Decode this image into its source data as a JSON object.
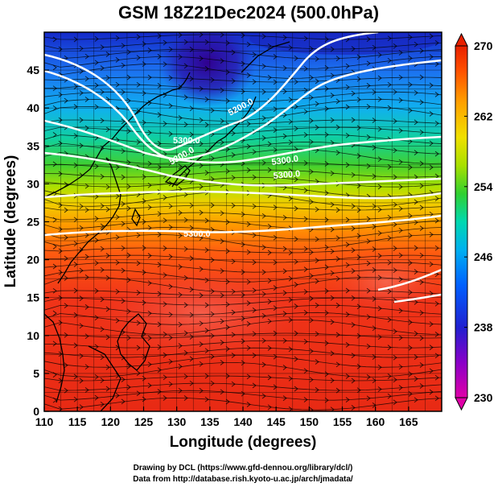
{
  "title": "GSM 18Z21Dec2024 (500.0hPa)",
  "x_axis": {
    "label": "Longitude (degrees)",
    "range": [
      110,
      170
    ],
    "ticks": [
      110,
      115,
      120,
      125,
      130,
      135,
      140,
      145,
      150,
      155,
      160,
      165
    ]
  },
  "y_axis": {
    "label": "Latitude  (degrees)",
    "range": [
      0,
      50
    ],
    "ticks": [
      0,
      5,
      10,
      15,
      20,
      25,
      30,
      35,
      40,
      45
    ]
  },
  "colorbar": {
    "range": [
      230,
      270
    ],
    "ticks": [
      230,
      238,
      246,
      254,
      262,
      270
    ],
    "colors": [
      "#e000a8",
      "#8a00c8",
      "#2020d0",
      "#0060ff",
      "#00b0f0",
      "#00d8b0",
      "#30d030",
      "#a8e000",
      "#f0e000",
      "#ffa000",
      "#ff5000",
      "#e82000"
    ]
  },
  "contours": [
    {
      "label": "5200.0"
    },
    {
      "label": "5300.0"
    },
    {
      "label": "5300.0"
    },
    {
      "label": "5300.0"
    },
    {
      "label": "5300.0"
    },
    {
      "label": "5300.0"
    }
  ],
  "credits": {
    "line1": "Drawing by DCL (https://www.gfd-dennou.org/library/dcl/)",
    "line2": "Data from http://database.rish.kyoto-u.ac.jp/arch/jmadata/"
  }
}
